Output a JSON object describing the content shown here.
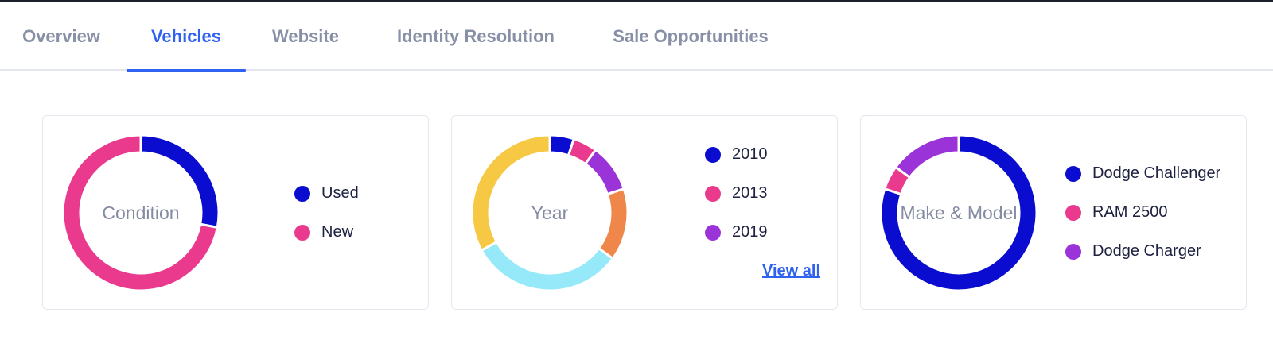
{
  "tabs": [
    {
      "label": "Overview",
      "active": false
    },
    {
      "label": "Vehicles",
      "active": true
    },
    {
      "label": "Website",
      "active": false
    },
    {
      "label": "Identity Resolution",
      "active": false
    },
    {
      "label": "Sale Opportunities",
      "active": false
    }
  ],
  "colors": {
    "accent": "#2f62f0",
    "navy": "#0a0ccf",
    "pink": "#ea3a8e",
    "purple": "#9b34d8",
    "orange": "#f0874a",
    "cyan": "#95e9f8",
    "yellow": "#f6c844"
  },
  "chart_data": [
    {
      "type": "pie",
      "center_label": "Condition",
      "series": [
        {
          "name": "Used",
          "value": 28,
          "color": "#0a0ccf"
        },
        {
          "name": "New",
          "value": 72,
          "color": "#ea3a8e"
        }
      ],
      "legend": [
        {
          "name": "Used",
          "color": "#0a0ccf"
        },
        {
          "name": "New",
          "color": "#ea3a8e"
        }
      ]
    },
    {
      "type": "pie",
      "center_label": "Year",
      "series": [
        {
          "name": "2010",
          "value": 5,
          "color": "#0a0ccf"
        },
        {
          "name": "2013",
          "value": 5,
          "color": "#ea3a8e"
        },
        {
          "name": "2019",
          "value": 10,
          "color": "#9b34d8"
        },
        {
          "name": "",
          "value": 15,
          "color": "#f0874a"
        },
        {
          "name": "",
          "value": 32,
          "color": "#95e9f8"
        },
        {
          "name": "",
          "value": 33,
          "color": "#f6c844"
        }
      ],
      "legend": [
        {
          "name": "2010",
          "color": "#0a0ccf"
        },
        {
          "name": "2013",
          "color": "#ea3a8e"
        },
        {
          "name": "2019",
          "color": "#9b34d8"
        }
      ],
      "link_label": "View all"
    },
    {
      "type": "pie",
      "center_label": "Make & Model",
      "series": [
        {
          "name": "Dodge Challenger",
          "value": 80,
          "color": "#0a0ccf"
        },
        {
          "name": "RAM 2500",
          "value": 5,
          "color": "#ea3a8e"
        },
        {
          "name": "Dodge Charger",
          "value": 15,
          "color": "#9b34d8"
        }
      ],
      "legend": [
        {
          "name": "Dodge Challenger",
          "color": "#0a0ccf"
        },
        {
          "name": "RAM 2500",
          "color": "#ea3a8e"
        },
        {
          "name": "Dodge Charger",
          "color": "#9b34d8"
        }
      ]
    }
  ]
}
